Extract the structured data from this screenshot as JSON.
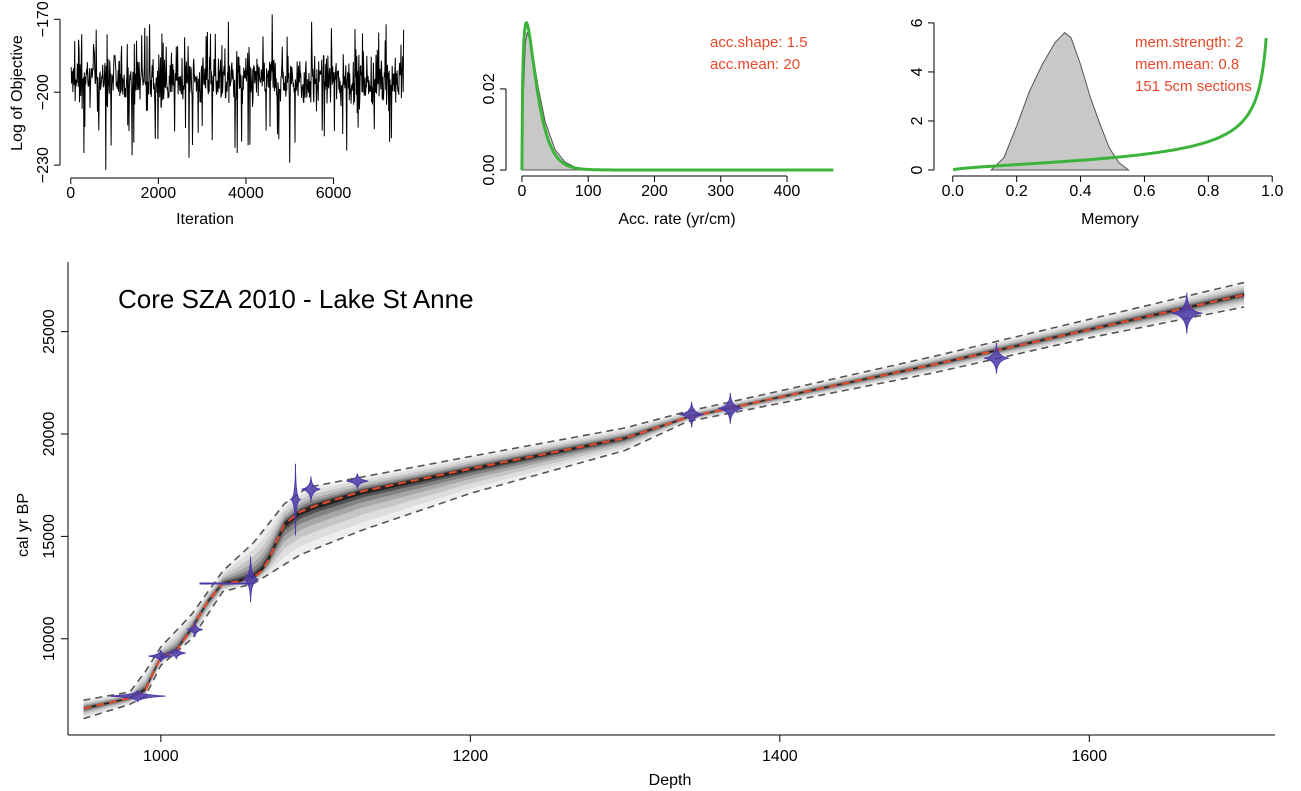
{
  "colors": {
    "axis": "#000000",
    "trace": "#000000",
    "prior_green": "#3cb43c",
    "posterior_fill": "#c8c8c8",
    "annotation_red": "#e8492a",
    "median_red": "#e8492a",
    "range_grey": "#555555",
    "date_blue": "#4b3aa8"
  },
  "chart_data": [
    {
      "type": "line",
      "panel": "mcmc-trace",
      "title": "",
      "xlabel": "Iteration",
      "ylabel": "Log of Objective",
      "xlim": [
        -200,
        7700
      ],
      "ylim": [
        -232,
        -167
      ],
      "xticks": [
        0,
        2000,
        4000,
        6000
      ],
      "yticks": [
        -230,
        -200,
        -170
      ],
      "series": [
        {
          "iterations": 7600,
          "typical_range": [
            -210,
            -180
          ],
          "mean": -195,
          "min": -232,
          "max": -168,
          "downward_spikes": [
            [
              300,
              -225
            ],
            [
              800,
              -232
            ],
            [
              1400,
              -226
            ],
            [
              2700,
              -227
            ],
            [
              3800,
              -225
            ],
            [
              5000,
              -229
            ],
            [
              6300,
              -224
            ]
          ],
          "upward_spikes": [
            [
              1800,
              -172
            ],
            [
              3600,
              -171
            ],
            [
              4600,
              -168
            ],
            [
              5500,
              -171
            ],
            [
              7200,
              -172
            ]
          ]
        }
      ],
      "grid": false
    },
    {
      "type": "area",
      "panel": "accumulation-rate",
      "xlabel": "Acc. rate (yr/cm)",
      "ylabel": "",
      "xlim": [
        -15,
        480
      ],
      "ylim": [
        0,
        0.037
      ],
      "xticks": [
        0,
        100,
        200,
        300,
        400
      ],
      "yticks": [
        0.0,
        0.02
      ],
      "ytick_labels": [
        "0.00",
        "0.02"
      ],
      "prior": {
        "distribution": "gamma",
        "shape": 1.5,
        "mean": 20,
        "x_range": [
          0,
          470
        ]
      },
      "posterior": {
        "x": [
          0,
          2,
          5,
          8,
          12,
          18,
          25,
          35,
          50,
          65,
          80,
          100
        ],
        "density": [
          0.0,
          0.018,
          0.031,
          0.034,
          0.032,
          0.027,
          0.02,
          0.012,
          0.005,
          0.002,
          0.0007,
          0.0
        ]
      },
      "annotations": [
        "acc.shape:  1.5",
        "acc.mean:  20"
      ]
    },
    {
      "type": "area",
      "panel": "memory",
      "xlabel": "Memory",
      "ylabel": "",
      "xlim": [
        -0.04,
        1.04
      ],
      "ylim": [
        0,
        6.2
      ],
      "xticks": [
        0.0,
        0.2,
        0.4,
        0.6,
        0.8,
        1.0
      ],
      "xtick_labels": [
        "0.0",
        "0.2",
        "0.4",
        "0.6",
        "0.8",
        "1.0"
      ],
      "yticks": [
        0,
        2,
        4,
        6
      ],
      "prior": {
        "distribution": "beta",
        "strength": 2,
        "mean": 0.8,
        "x_range": [
          0,
          0.985
        ]
      },
      "posterior": {
        "x": [
          0.12,
          0.16,
          0.2,
          0.24,
          0.28,
          0.32,
          0.35,
          0.37,
          0.4,
          0.43,
          0.46,
          0.49,
          0.52,
          0.55
        ],
        "density": [
          0.0,
          0.5,
          1.8,
          3.2,
          4.3,
          5.2,
          5.6,
          5.4,
          4.3,
          3.0,
          1.9,
          0.9,
          0.3,
          0.0
        ]
      },
      "annotations": [
        "mem.strength: 2",
        "mem.mean: 0.8",
        "151 5cm sections"
      ]
    },
    {
      "type": "line",
      "panel": "age-depth",
      "title": "Core SZA 2010 - Lake St Anne",
      "xlabel": "Depth",
      "ylabel": "cal yr BP",
      "xlim": [
        940,
        1720
      ],
      "ylim": [
        5300,
        28400
      ],
      "xticks": [
        1000,
        1200,
        1400,
        1600
      ],
      "yticks": [
        10000,
        15000,
        20000,
        25000
      ],
      "series": [
        {
          "name": "",
          "role": "weighted-mean",
          "x": [
            950,
            980,
            990,
            995,
            1000,
            1010,
            1020,
            1030,
            1040,
            1050,
            1060,
            1065,
            1070,
            1075,
            1080,
            1090,
            1100,
            1130,
            1200,
            1300,
            1340,
            1400,
            1500,
            1600,
            1700
          ],
          "y": [
            6600,
            7100,
            7500,
            8300,
            9100,
            9400,
            10500,
            11800,
            12700,
            12800,
            13000,
            13300,
            13900,
            14800,
            15600,
            16200,
            16500,
            17200,
            18300,
            19800,
            20800,
            21800,
            23400,
            25100,
            26800
          ]
        },
        {
          "name": "",
          "role": "upper-95",
          "x": [
            950,
            980,
            990,
            1000,
            1020,
            1040,
            1060,
            1080,
            1095,
            1130,
            1200,
            1300,
            1340,
            1400,
            1500,
            1600,
            1700
          ],
          "y": [
            7000,
            7400,
            8400,
            9600,
            11200,
            13300,
            14700,
            16600,
            17400,
            17900,
            18900,
            20300,
            21100,
            22100,
            23800,
            25600,
            27400
          ]
        },
        {
          "name": "",
          "role": "lower-95",
          "x": [
            950,
            980,
            990,
            1000,
            1020,
            1040,
            1060,
            1090,
            1130,
            1200,
            1300,
            1340,
            1400,
            1500,
            1600,
            1700
          ],
          "y": [
            6100,
            6800,
            7200,
            8700,
            10000,
            12300,
            12700,
            14100,
            15300,
            17100,
            19200,
            20600,
            21500,
            23000,
            24700,
            26200
          ]
        }
      ],
      "dates": [
        {
          "depth": 985,
          "age": 7200,
          "age_sd": 80,
          "depth_half_width": 18
        },
        {
          "depth": 1000,
          "age": 9150,
          "age_sd": 120,
          "depth_half_width": 8
        },
        {
          "depth": 1010,
          "age": 9300,
          "age_sd": 120,
          "depth_half_width": 6
        },
        {
          "depth": 1022,
          "age": 10450,
          "age_sd": 150,
          "depth_half_width": 5
        },
        {
          "depth": 1058,
          "age": 12900,
          "age_sd": 450,
          "depth_half_width": 5
        },
        {
          "depth": 1087,
          "age": 16800,
          "age_sd": 700,
          "depth_half_width": 3
        },
        {
          "depth": 1097,
          "age": 17300,
          "age_sd": 250,
          "depth_half_width": 6
        },
        {
          "depth": 1127,
          "age": 17700,
          "age_sd": 150,
          "depth_half_width": 7
        },
        {
          "depth": 1343,
          "age": 20950,
          "age_sd": 250,
          "depth_half_width": 8
        },
        {
          "depth": 1368,
          "age": 21250,
          "age_sd": 300,
          "depth_half_width": 8
        },
        {
          "depth": 1540,
          "age": 23700,
          "age_sd": 300,
          "depth_half_width": 8
        },
        {
          "depth": 1663,
          "age": 25900,
          "age_sd": 400,
          "depth_half_width": 10
        }
      ],
      "grid": false
    }
  ]
}
